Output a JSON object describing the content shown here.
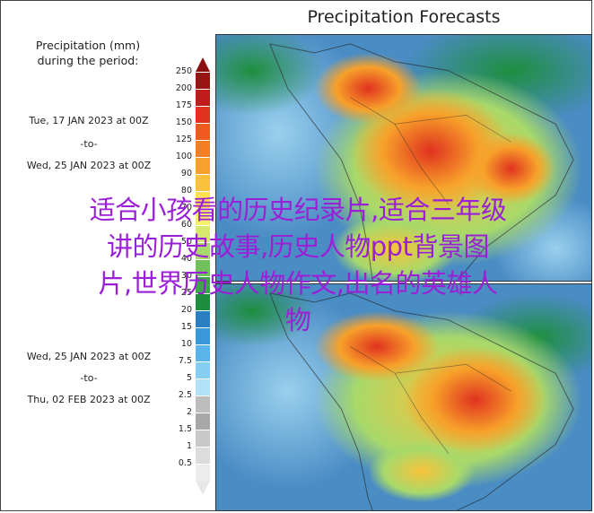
{
  "title": "Precipitation Forecasts",
  "legend": {
    "heading_line1": "Precipitation (mm)",
    "heading_line2": "during the period:",
    "period1": {
      "start": "Tue, 17 JAN 2023 at 00Z",
      "sep": "-to-",
      "end": "Wed, 25 JAN 2023 at 00Z"
    },
    "period2": {
      "start": "Wed, 25 JAN 2023 at 00Z",
      "sep": "-to-",
      "end": "Thu, 02 FEB 2023 at 00Z"
    },
    "ticks": [
      "250",
      "200",
      "175",
      "150",
      "125",
      "100",
      "90",
      "80",
      "70",
      "60",
      "50",
      "40",
      "30",
      "25",
      "20",
      "15",
      "10",
      "7.5",
      "5",
      "2.5",
      "2",
      "1.5",
      "1",
      "0.5"
    ],
    "colors": [
      "#9b1414",
      "#c21b1b",
      "#e0321f",
      "#f05a1e",
      "#f57f20",
      "#f7a12a",
      "#f9c23a",
      "#fce04e",
      "#f6ef6a",
      "#d8ea6e",
      "#a8d96a",
      "#6fc05a",
      "#3aa64a",
      "#1e8e3e",
      "#2b7fc0",
      "#3a98d8",
      "#5ab4ea",
      "#86cdf2",
      "#b2e2f7",
      "#bdbdbd",
      "#a8a8a8",
      "#c8c8c8",
      "#dcdcdc",
      "#ececec"
    ]
  },
  "watermark": {
    "line1": "适合小孩看的历史纪录片,适合三年级",
    "line2": "讲的历史故事,历史人物ppt背景图",
    "line3": "片,世界历史人物作文,出名的英雄人",
    "line4": "物"
  }
}
